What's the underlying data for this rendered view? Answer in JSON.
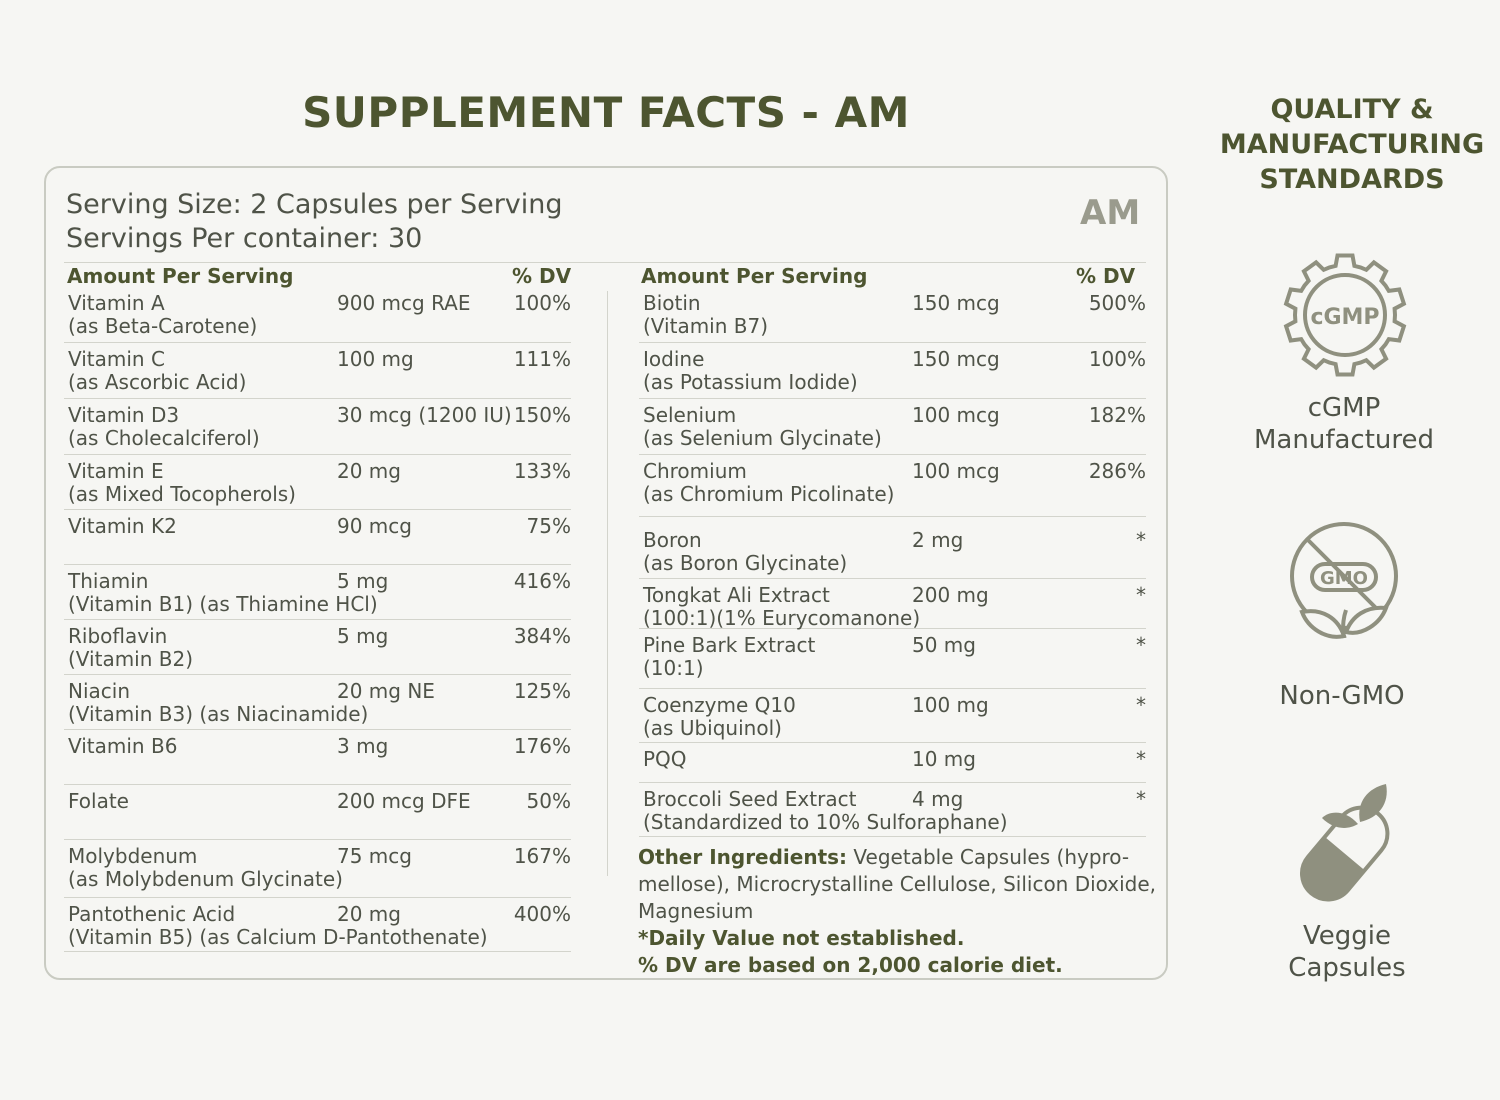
{
  "title": "SUPPLEMENT FACTS - AM",
  "serving": {
    "size": "Serving Size: 2 Capsules per Serving",
    "per_container": "Servings Per container: 30",
    "badge": "AM"
  },
  "left": {
    "head_amount": "Amount Per Serving",
    "head_dv": "% DV",
    "rows": [
      {
        "name": "Vitamin A",
        "sub": "(as Beta-Carotene)",
        "amount": "900 mcg RAE",
        "dv": "100%"
      },
      {
        "name": "Vitamin C",
        "sub": "(as Ascorbic Acid)",
        "amount": "100 mg",
        "dv": "111%"
      },
      {
        "name": "Vitamin D3",
        "sub": "(as Cholecalciferol)",
        "amount": "30 mcg (1200 IU)",
        "dv": "150%"
      },
      {
        "name": "Vitamin E",
        "sub": "(as Mixed Tocopherols)",
        "amount": "20 mg",
        "dv": "133%"
      },
      {
        "name": "Vitamin K2",
        "sub": "",
        "amount": "90 mcg",
        "dv": "75%"
      },
      {
        "name": "Thiamin",
        "sub": "(Vitamin B1) (as Thiamine HCl)",
        "amount": "5 mg",
        "dv": "416%"
      },
      {
        "name": "Riboflavin",
        "sub": "(Vitamin B2)",
        "amount": "5 mg",
        "dv": "384%"
      },
      {
        "name": "Niacin",
        "sub": "(Vitamin B3) (as Niacinamide)",
        "amount": "20 mg NE",
        "dv": "125%"
      },
      {
        "name": "Vitamin B6",
        "sub": "",
        "amount": "3 mg",
        "dv": "176%"
      },
      {
        "name": "Folate",
        "sub": "",
        "amount": "200 mcg DFE",
        "dv": "50%"
      },
      {
        "name": "Molybdenum",
        "sub": "(as Molybdenum Glycinate)",
        "amount": "75 mcg",
        "dv": "167%"
      },
      {
        "name": "Pantothenic Acid",
        "sub": "(Vitamin B5) (as Calcium D-Pantothenate)",
        "amount": "20 mg",
        "dv": "400%"
      }
    ]
  },
  "right": {
    "head_amount": "Amount Per Serving",
    "head_dv": "% DV",
    "rows": [
      {
        "name": "Biotin",
        "sub": "(Vitamin B7)",
        "amount": "150 mcg",
        "dv": "500%"
      },
      {
        "name": "Iodine",
        "sub": "(as Potassium Iodide)",
        "amount": "150 mcg",
        "dv": "100%"
      },
      {
        "name": "Selenium",
        "sub": "(as Selenium Glycinate)",
        "amount": "100 mcg",
        "dv": "182%"
      },
      {
        "name": "Chromium",
        "sub": "(as Chromium Picolinate)",
        "amount": "100 mcg",
        "dv": "286%"
      },
      {
        "name": "Boron",
        "sub": "(as Boron Glycinate)",
        "amount": "2 mg",
        "dv": "*"
      },
      {
        "name": "Tongkat Ali Extract",
        "sub": "(100:1)(1% Eurycomanone)",
        "amount": "200 mg",
        "dv": "*"
      },
      {
        "name": "Pine Bark Extract",
        "sub": "(10:1)",
        "amount": "50 mg",
        "dv": "*"
      },
      {
        "name": "Coenzyme Q10",
        "sub": "(as Ubiquinol)",
        "amount": "100 mg",
        "dv": "*"
      },
      {
        "name": "PQQ",
        "sub": "",
        "amount": "10 mg",
        "dv": "*"
      },
      {
        "name": "Broccoli Seed Extract",
        "sub": "(Standardized to 10% Sulforaphane)",
        "amount": "4 mg",
        "dv": "*"
      }
    ]
  },
  "notes": {
    "other_label": "Other Ingredients:",
    "other_text": " Vegetable Capsules (hypro-mellose), Microcrystalline Cellulose, Silicon Dioxide, Magnesium",
    "daily_value": "*Daily Value not established.",
    "dv_basis": "% DV are based on 2,000 calorie diet."
  },
  "sidebar": {
    "title_line1": "QUALITY &",
    "title_line2": "MANUFACTURING",
    "title_line3": "STANDARDS",
    "badges": [
      {
        "icon": "gear-icon",
        "icon_text": "cGMP",
        "line1": "cGMP",
        "line2": "Manufactured"
      },
      {
        "icon": "non-gmo-icon",
        "icon_text": "GMO",
        "line1": "Non-GMO",
        "line2": ""
      },
      {
        "icon": "capsule-leaf-icon",
        "line1": "Veggie",
        "line2": "Capsules"
      }
    ]
  },
  "colors": {
    "accent": "#4d5530",
    "text": "#4f5348",
    "icon": "#8f907f",
    "rule": "#d3d4cc"
  }
}
